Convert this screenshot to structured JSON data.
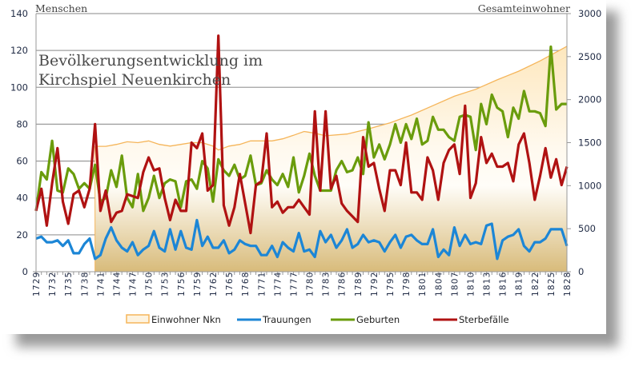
{
  "chart_data": {
    "type": "line",
    "title": "Bevölkerungsentwicklung im Kirchspiel Neuenkirchen",
    "title_lines": [
      "Bevölkerungsentwicklung im",
      "Kirchspiel Neuenkirchen"
    ],
    "ylabel_left": "Menschen",
    "ylabel_right": "Gesamteinwohner",
    "ylim_left": [
      0,
      140
    ],
    "yticks_left": [
      0,
      20,
      40,
      60,
      80,
      100,
      120,
      140
    ],
    "ylim_right": [
      0,
      3000
    ],
    "yticks_right": [
      0,
      500,
      1000,
      1500,
      2000,
      2500,
      3000
    ],
    "x_start": 1729,
    "x_end": 1828,
    "xtick_step": 3,
    "grid": true,
    "legend_position": "bottom",
    "colors": {
      "einwohner_line": "#f5b55a",
      "trauungen": "#1c86d6",
      "geburten": "#6a9c0c",
      "sterbefaelle": "#b01212"
    },
    "area_series": {
      "name": "Einwohner Nkn",
      "axis": "right",
      "points": [
        [
          1740,
          1457
        ],
        [
          1742,
          1457
        ],
        [
          1744,
          1480
        ],
        [
          1746,
          1510
        ],
        [
          1748,
          1500
        ],
        [
          1750,
          1520
        ],
        [
          1752,
          1480
        ],
        [
          1754,
          1460
        ],
        [
          1756,
          1480
        ],
        [
          1758,
          1500
        ],
        [
          1760,
          1500
        ],
        [
          1762,
          1460
        ],
        [
          1763,
          1415
        ],
        [
          1765,
          1460
        ],
        [
          1767,
          1480
        ],
        [
          1769,
          1520
        ],
        [
          1771,
          1520
        ],
        [
          1773,
          1520
        ],
        [
          1775,
          1545
        ],
        [
          1777,
          1585
        ],
        [
          1779,
          1630
        ],
        [
          1781,
          1610
        ],
        [
          1783,
          1580
        ],
        [
          1787,
          1600
        ],
        [
          1791,
          1660
        ],
        [
          1795,
          1730
        ],
        [
          1799,
          1820
        ],
        [
          1803,
          1930
        ],
        [
          1807,
          2040
        ],
        [
          1811,
          2120
        ],
        [
          1815,
          2230
        ],
        [
          1819,
          2330
        ],
        [
          1823,
          2450
        ],
        [
          1828,
          2620
        ]
      ]
    },
    "series": [
      {
        "name": "Trauungen",
        "axis": "left",
        "values": [
          18,
          19,
          16,
          16,
          17,
          14,
          17,
          10,
          10,
          15,
          18,
          7,
          9,
          18,
          24,
          17,
          13,
          11,
          16,
          9,
          12,
          14,
          22,
          13,
          11,
          23,
          12,
          22,
          13,
          12,
          28,
          14,
          19,
          13,
          13,
          17,
          10,
          12,
          17,
          15,
          14,
          14,
          9,
          9,
          14,
          8,
          16,
          13,
          11,
          21,
          11,
          12,
          8,
          22,
          16,
          20,
          13,
          17,
          23,
          13,
          15,
          20,
          16,
          17,
          16,
          11,
          16,
          20,
          13,
          19,
          20,
          17,
          15,
          15,
          23,
          8,
          12,
          9,
          24,
          14,
          20,
          15,
          16,
          15,
          25,
          26,
          7,
          17,
          19,
          20,
          23,
          14,
          11,
          16,
          16,
          18,
          23,
          23,
          23,
          14
        ]
      },
      {
        "name": "Geburten",
        "axis": "left",
        "values": [
          33,
          54,
          50,
          71,
          44,
          43,
          56,
          53,
          45,
          48,
          45,
          58,
          38,
          40,
          55,
          46,
          63,
          40,
          35,
          53,
          33,
          40,
          52,
          40,
          48,
          50,
          49,
          35,
          49,
          50,
          45,
          60,
          56,
          38,
          61,
          55,
          52,
          58,
          50,
          52,
          63,
          47,
          48,
          55,
          50,
          47,
          53,
          46,
          62,
          43,
          52,
          64,
          52,
          44,
          44,
          44,
          55,
          60,
          54,
          55,
          62,
          53,
          81,
          62,
          69,
          61,
          69,
          80,
          70,
          80,
          72,
          83,
          69,
          71,
          84,
          77,
          77,
          73,
          71,
          84,
          85,
          84,
          66,
          91,
          80,
          96,
          89,
          87,
          73,
          89,
          83,
          98,
          87,
          87,
          86,
          79,
          122,
          88,
          91,
          91
        ]
      },
      {
        "name": "Sterbefälle",
        "axis": "left",
        "values": [
          33,
          45,
          25,
          48,
          67,
          38,
          26,
          42,
          44,
          35,
          45,
          80,
          33,
          44,
          27,
          32,
          33,
          42,
          41,
          40,
          54,
          62,
          55,
          56,
          40,
          28,
          39,
          33,
          33,
          70,
          67,
          75,
          44,
          47,
          128,
          36,
          25,
          35,
          53,
          37,
          21,
          47,
          49,
          75,
          35,
          38,
          32,
          35,
          35,
          39,
          35,
          31,
          87,
          44,
          87,
          45,
          52,
          37,
          33,
          30,
          27,
          73,
          57,
          59,
          45,
          33,
          55,
          55,
          47,
          70,
          43,
          43,
          39,
          62,
          55,
          39,
          59,
          66,
          69,
          53,
          90,
          40,
          48,
          73,
          59,
          64,
          57,
          57,
          59,
          49,
          69,
          75,
          59,
          39,
          52,
          67,
          51,
          61,
          47,
          57
        ]
      }
    ]
  }
}
